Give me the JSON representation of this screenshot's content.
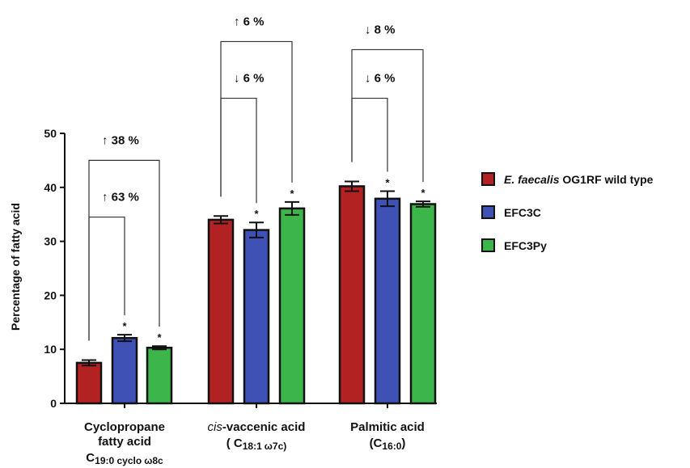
{
  "chart_data": {
    "type": "bar",
    "ylabel": "Percentage of fatty acid",
    "ylim": [
      0,
      50
    ],
    "yticks": [
      0,
      10,
      20,
      30,
      40,
      50
    ],
    "categories": [
      {
        "name": "Cyclopropane",
        "name2": "fatty acid",
        "formula_base": "C",
        "formula_sub": "19:0 cyclo",
        "formula_greek": "ω",
        "formula_end": "8c"
      },
      {
        "name_italic": "cis",
        "name": "-vaccenic acid",
        "formula_base": "( C",
        "formula_sub": "18:1",
        "formula_greek": "ω",
        "formula_end": "7c)"
      },
      {
        "name": "Palmitic acid",
        "formula_base": "(C",
        "formula_sub": "16:0",
        "formula_end": ")"
      }
    ],
    "series": [
      {
        "name_italic": "E. faecalis",
        "name": " OG1RF wild type",
        "color": "#b22222",
        "values": [
          7.5,
          34.0,
          40.2
        ],
        "errors": [
          0.5,
          0.7,
          0.9
        ]
      },
      {
        "name": "EFC3C",
        "color": "#3f51b5",
        "values": [
          12.1,
          32.1,
          37.9
        ],
        "errors": [
          0.6,
          1.4,
          1.4
        ]
      },
      {
        "name": "EFC3Py",
        "color": "#3cb54a",
        "values": [
          10.3,
          36.1,
          36.9
        ],
        "errors": [
          0.3,
          1.2,
          0.5
        ]
      }
    ],
    "significance_markers": [
      {
        "category": 0,
        "series": 1,
        "text": "*"
      },
      {
        "category": 0,
        "series": 2,
        "text": "*"
      },
      {
        "category": 1,
        "series": 1,
        "text": "*"
      },
      {
        "category": 1,
        "series": 2,
        "text": "*"
      },
      {
        "category": 2,
        "series": 1,
        "text": "*"
      },
      {
        "category": 2,
        "series": 2,
        "text": "*"
      }
    ],
    "annotations": [
      {
        "category": 0,
        "from_series": 0,
        "to_series": 2,
        "text": "↑ 38 %",
        "level": 45
      },
      {
        "category": 0,
        "from_series": 0,
        "to_series": 1,
        "text": "↑ 63 %",
        "level": 34.5
      },
      {
        "category": 1,
        "from_series": 0,
        "to_series": 2,
        "text": "↑ 6 %",
        "level": 67
      },
      {
        "category": 1,
        "from_series": 0,
        "to_series": 1,
        "text": "↓ 6 %",
        "level": 56.5
      },
      {
        "category": 2,
        "from_series": 0,
        "to_series": 2,
        "text": "↓ 8 %",
        "level": 65.5
      },
      {
        "category": 2,
        "from_series": 0,
        "to_series": 1,
        "text": "↓ 6 %",
        "level": 56.5
      }
    ],
    "legend_position": "right"
  }
}
